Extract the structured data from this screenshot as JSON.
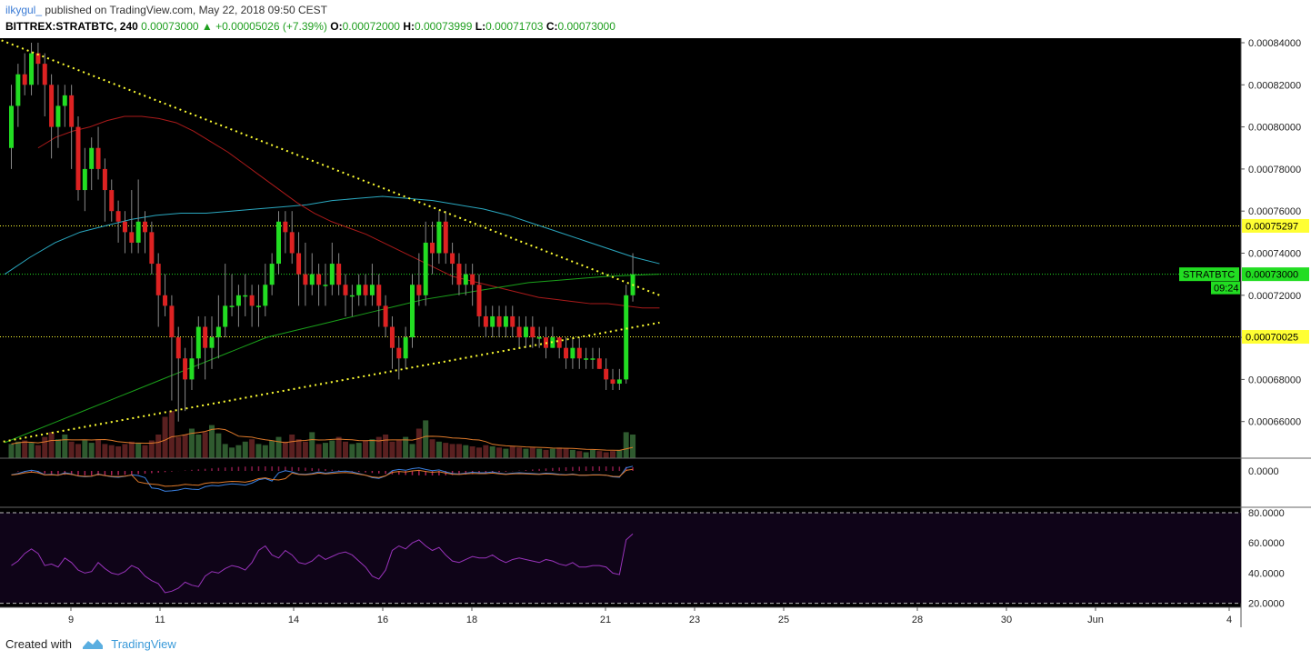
{
  "header": {
    "author": "ilkygul_",
    "published": "published on TradingView.com, May 22, 2018 09:50 CEST",
    "symbol": "BITTREX:STRATBTC, 240",
    "last": "0.00073000",
    "change": "+0.00005026 (+7.39%)",
    "o_label": "O:",
    "o": "0.00072000",
    "h_label": "H:",
    "h": "0.00073999",
    "l_label": "L:",
    "l": "0.00071703",
    "c_label": "C:",
    "c": "0.00073000"
  },
  "footer": {
    "created_with": "Created with",
    "brand": "TradingView"
  },
  "colors": {
    "bull": "#22dd22",
    "bear": "#dd2222",
    "ma_red": "#aa1a1a",
    "ma_green": "#1aa01a",
    "ma_blue": "#2aa8c0",
    "trend": "#ffff33",
    "rsi": "#9933bb",
    "rsi_bg": "#0f0418",
    "vol_ma": "#e07a2a",
    "macd_line": "#3a80e0",
    "macd_signal": "#e07a2a"
  },
  "chart_data": {
    "type": "candlestick",
    "symbol": "STRATBTC",
    "y_ticks": [
      "0.00084000",
      "0.00082000",
      "0.00080000",
      "0.00078000",
      "0.00076000",
      "0.00074000",
      "0.00072000",
      "0.00070000",
      "0.00068000",
      "0.00066000"
    ],
    "ylim": [
      0.000652,
      0.000846
    ],
    "x_ticks": [
      "9",
      "11",
      "14",
      "16",
      "18",
      "21",
      "23",
      "25",
      "28",
      "30",
      "Jun",
      "4"
    ],
    "price_tags": {
      "resistance": "0.00075297",
      "current": "0.00073000",
      "support": "0.00070025",
      "countdown": "09:24",
      "symbol_label": "STRATBTC"
    },
    "candles": [
      [
        79.0,
        81.0,
        82.0,
        78.0
      ],
      [
        81.0,
        82.5,
        83.0,
        80.0
      ],
      [
        82.5,
        82.0,
        83.5,
        81.5
      ],
      [
        82.0,
        83.5,
        84.0,
        81.5
      ],
      [
        83.5,
        83.0,
        84.0,
        82.0
      ],
      [
        83.0,
        82.0,
        83.5,
        80.5
      ],
      [
        82.0,
        80.0,
        82.5,
        78.5
      ],
      [
        80.0,
        81.0,
        82.0,
        79.0
      ],
      [
        81.0,
        81.5,
        82.0,
        80.0
      ],
      [
        81.5,
        80.0,
        82.0,
        78.0
      ],
      [
        80.0,
        77.0,
        80.5,
        76.5
      ],
      [
        77.0,
        78.0,
        79.0,
        76.0
      ],
      [
        78.0,
        79.0,
        79.5,
        77.0
      ],
      [
        79.0,
        78.0,
        80.0,
        77.5
      ],
      [
        78.0,
        77.0,
        78.5,
        75.5
      ],
      [
        77.0,
        76.0,
        77.5,
        75.5
      ],
      [
        76.0,
        75.5,
        76.5,
        74.5
      ],
      [
        75.5,
        75.0,
        76.0,
        74.0
      ],
      [
        75.0,
        74.5,
        77.0,
        74.0
      ],
      [
        74.5,
        75.5,
        77.5,
        74.0
      ],
      [
        75.5,
        75.0,
        76.0,
        74.0
      ],
      [
        75.0,
        73.5,
        75.5,
        73.0
      ],
      [
        73.5,
        72.0,
        74.0,
        70.5
      ],
      [
        72.0,
        71.5,
        73.0,
        71.0
      ],
      [
        71.5,
        70.0,
        72.0,
        67.0
      ],
      [
        70.0,
        69.0,
        70.5,
        66.0
      ],
      [
        69.0,
        68.0,
        69.5,
        66.5
      ],
      [
        68.0,
        69.0,
        70.0,
        67.5
      ],
      [
        69.0,
        70.5,
        71.0,
        68.5
      ],
      [
        70.5,
        69.5,
        71.0,
        68.0
      ],
      [
        69.5,
        70.0,
        71.0,
        68.5
      ],
      [
        70.0,
        70.5,
        72.0,
        69.0
      ],
      [
        70.5,
        71.5,
        73.5,
        70.0
      ],
      [
        71.5,
        71.5,
        73.0,
        71.0
      ],
      [
        71.5,
        72.0,
        72.5,
        70.5
      ],
      [
        72.0,
        72.0,
        73.0,
        71.0
      ],
      [
        72.0,
        71.5,
        72.5,
        70.5
      ],
      [
        71.5,
        71.5,
        72.5,
        70.5
      ],
      [
        71.5,
        72.5,
        73.5,
        71.0
      ],
      [
        72.5,
        73.5,
        74.0,
        72.0
      ],
      [
        73.5,
        75.5,
        76.0,
        73.0
      ],
      [
        75.5,
        75.0,
        76.0,
        74.0
      ],
      [
        75.0,
        74.0,
        76.0,
        73.5
      ],
      [
        74.0,
        73.0,
        75.0,
        71.5
      ],
      [
        73.0,
        72.5,
        74.5,
        71.5
      ],
      [
        72.5,
        73.0,
        74.0,
        72.0
      ],
      [
        73.0,
        72.5,
        73.5,
        71.5
      ],
      [
        72.5,
        72.5,
        73.5,
        71.5
      ],
      [
        72.5,
        73.5,
        74.5,
        72.0
      ],
      [
        73.5,
        72.5,
        74.0,
        72.0
      ],
      [
        72.5,
        72.0,
        73.0,
        71.0
      ],
      [
        72.0,
        72.0,
        72.5,
        71.0
      ],
      [
        72.0,
        72.5,
        73.0,
        71.5
      ],
      [
        72.5,
        72.0,
        73.0,
        71.5
      ],
      [
        72.0,
        72.5,
        73.5,
        71.5
      ],
      [
        72.5,
        71.5,
        73.0,
        70.5
      ],
      [
        71.5,
        70.5,
        72.0,
        70.0
      ],
      [
        70.5,
        69.5,
        71.0,
        68.5
      ],
      [
        69.5,
        69.0,
        70.0,
        68.0
      ],
      [
        69.0,
        70.0,
        70.5,
        68.5
      ],
      [
        70.0,
        72.5,
        73.0,
        69.5
      ],
      [
        72.5,
        72.0,
        74.0,
        71.5
      ],
      [
        72.0,
        74.5,
        75.5,
        71.5
      ],
      [
        74.5,
        74.0,
        75.5,
        73.0
      ],
      [
        74.0,
        75.5,
        76.0,
        73.5
      ],
      [
        75.5,
        74.0,
        76.0,
        73.5
      ],
      [
        74.0,
        73.5,
        74.5,
        72.5
      ],
      [
        73.5,
        72.5,
        74.0,
        72.0
      ],
      [
        72.5,
        73.0,
        73.5,
        72.0
      ],
      [
        73.0,
        72.5,
        73.5,
        71.5
      ],
      [
        72.5,
        71.0,
        73.0,
        70.5
      ],
      [
        71.0,
        70.5,
        71.5,
        70.0
      ],
      [
        70.5,
        71.0,
        71.5,
        70.0
      ],
      [
        71.0,
        70.5,
        71.5,
        70.0
      ],
      [
        70.5,
        71.0,
        71.5,
        70.0
      ],
      [
        71.0,
        70.5,
        71.5,
        70.0
      ],
      [
        70.5,
        70.0,
        71.0,
        69.5
      ],
      [
        70.0,
        70.5,
        71.0,
        69.5
      ],
      [
        70.5,
        70.0,
        71.0,
        69.5
      ],
      [
        70.0,
        70.0,
        70.5,
        69.5
      ],
      [
        70.0,
        69.5,
        70.5,
        69.0
      ],
      [
        69.5,
        70.0,
        70.5,
        69.5
      ],
      [
        70.0,
        69.5,
        70.0,
        69.0
      ],
      [
        69.5,
        69.0,
        70.0,
        68.5
      ],
      [
        69.0,
        69.5,
        70.0,
        68.5
      ],
      [
        69.5,
        69.0,
        70.0,
        68.5
      ],
      [
        69.0,
        69.0,
        69.5,
        68.5
      ],
      [
        69.0,
        69.0,
        69.5,
        68.5
      ],
      [
        69.0,
        68.5,
        69.5,
        68.5
      ],
      [
        68.5,
        68.0,
        69.0,
        67.5
      ],
      [
        68.0,
        67.8,
        68.5,
        67.5
      ],
      [
        67.8,
        68.0,
        68.5,
        67.5
      ],
      [
        68.0,
        72.0,
        72.5,
        67.8
      ],
      [
        72.0,
        73.0,
        74.0,
        71.7
      ]
    ],
    "volumes": [
      12,
      14,
      15,
      13,
      11,
      18,
      22,
      16,
      20,
      14,
      12,
      15,
      13,
      16,
      12,
      11,
      10,
      12,
      14,
      13,
      11,
      15,
      20,
      35,
      40,
      18,
      20,
      25,
      20,
      22,
      28,
      21,
      12,
      9,
      11,
      14,
      16,
      12,
      11,
      15,
      18,
      14,
      20,
      16,
      14,
      22,
      12,
      13,
      15,
      18,
      14,
      12,
      13,
      15,
      16,
      18,
      20,
      14,
      15,
      18,
      12,
      25,
      32,
      16,
      14,
      13,
      12,
      12,
      11,
      10,
      9,
      11,
      10,
      9,
      8,
      10,
      9,
      8,
      9,
      8,
      7,
      8,
      9,
      8,
      7,
      6,
      5,
      7,
      6,
      5,
      6,
      7,
      22,
      20
    ],
    "ma_red": [
      79.0,
      79.5,
      79.8,
      80.0,
      80.3,
      80.5,
      80.5,
      80.4,
      80.2,
      79.8,
      79.3,
      78.8,
      78.2,
      77.6,
      77.0,
      76.4,
      75.9,
      75.5,
      75.2,
      74.9,
      74.5,
      74.1,
      73.7,
      73.3,
      72.9,
      72.7,
      72.5,
      72.3,
      72.1,
      71.9,
      71.8,
      71.7,
      71.6,
      71.6,
      71.5,
      71.4,
      71.4
    ],
    "ma_green": [
      65.0,
      65.5,
      66.0,
      66.5,
      67.0,
      67.5,
      68.0,
      68.5,
      69.0,
      69.5,
      70.0,
      70.3,
      70.6,
      70.9,
      71.2,
      71.5,
      71.8,
      72.0,
      72.2,
      72.4,
      72.6,
      72.7,
      72.8,
      72.9,
      72.95,
      73.0
    ],
    "ma_blue": [
      73.0,
      73.8,
      74.5,
      75.0,
      75.3,
      75.6,
      75.8,
      75.9,
      75.9,
      76.0,
      76.1,
      76.2,
      76.3,
      76.5,
      76.6,
      76.7,
      76.6,
      76.5,
      76.3,
      76.1,
      75.8,
      75.4,
      75.0,
      74.6,
      74.2,
      73.8,
      73.5
    ],
    "trendlines": [
      {
        "from": [
          -3,
          84.3
        ],
        "to": [
          97,
          72.0
        ]
      },
      {
        "from": [
          -2,
          65.0
        ],
        "to": [
          97,
          70.7
        ]
      }
    ],
    "macd": {
      "zero_label": "0.0000"
    },
    "rsi": {
      "ticks": [
        "80.0000",
        "60.0000",
        "40.0000",
        "20.0000"
      ],
      "levels": [
        80,
        20
      ],
      "values": [
        45,
        48,
        53,
        56,
        53,
        45,
        46,
        44,
        50,
        47,
        42,
        40,
        41,
        47,
        43,
        40,
        39,
        41,
        45,
        43,
        38,
        35,
        33,
        27,
        28,
        30,
        34,
        32,
        31,
        38,
        41,
        40,
        43,
        45,
        44,
        42,
        47,
        55,
        58,
        52,
        50,
        55,
        52,
        47,
        46,
        48,
        52,
        49,
        51,
        53,
        54,
        52,
        48,
        44,
        38,
        36,
        42,
        55,
        58,
        56,
        60,
        62,
        58,
        55,
        57,
        52,
        48,
        47,
        49,
        51,
        50,
        50,
        52,
        49,
        47,
        49,
        50,
        49,
        48,
        47,
        49,
        48,
        46,
        45,
        47,
        44,
        44,
        45,
        45,
        44,
        40,
        39,
        62,
        66
      ]
    }
  }
}
